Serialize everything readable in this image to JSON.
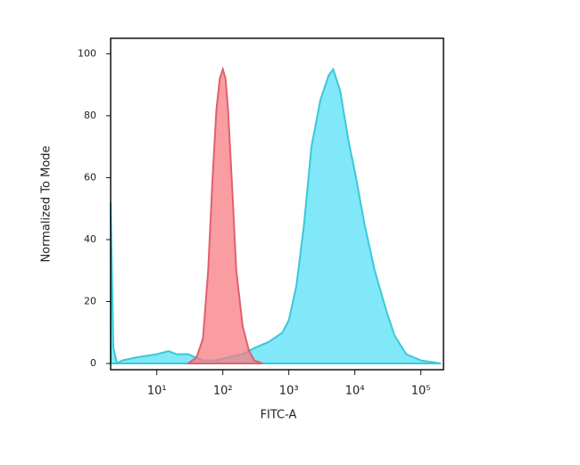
{
  "chart_data": {
    "type": "area",
    "xlabel": "FITC-A",
    "ylabel": "Normalized To Mode",
    "xscale": "log",
    "xlim": [
      2,
      220000
    ],
    "ylim": [
      -2,
      105
    ],
    "xticks": [
      {
        "value": 10,
        "label": "10¹"
      },
      {
        "value": 100,
        "label": "10²"
      },
      {
        "value": 1000,
        "label": "10³"
      },
      {
        "value": 10000,
        "label": "10⁴"
      },
      {
        "value": 100000,
        "label": "10⁵"
      }
    ],
    "yticks": [
      0,
      20,
      40,
      60,
      80,
      100
    ],
    "series": [
      {
        "color": "#3cc8d8",
        "fill": "#80e8f8",
        "x": [
          2,
          2.2,
          2.5,
          3,
          5,
          10,
          15,
          20,
          30,
          50,
          80,
          120,
          200,
          300,
          500,
          800,
          1000,
          1300,
          1700,
          2200,
          3000,
          4000,
          4700,
          6000,
          8000,
          10000,
          14000,
          20000,
          30000,
          40000,
          60000,
          100000,
          200000
        ],
        "values": [
          52,
          5,
          0,
          1,
          2,
          3,
          4,
          3,
          3,
          1,
          1,
          2,
          3,
          5,
          7,
          10,
          14,
          25,
          45,
          70,
          85,
          93,
          95,
          88,
          72,
          62,
          45,
          30,
          17,
          9,
          3,
          1,
          0
        ]
      },
      {
        "color": "#e0606c",
        "fill": "#f77c84",
        "x": [
          30,
          40,
          50,
          60,
          70,
          80,
          90,
          100,
          110,
          120,
          140,
          160,
          200,
          250,
          300,
          400
        ],
        "values": [
          0,
          2,
          8,
          30,
          60,
          82,
          92,
          95,
          92,
          82,
          55,
          30,
          12,
          4,
          1,
          0
        ]
      }
    ]
  }
}
